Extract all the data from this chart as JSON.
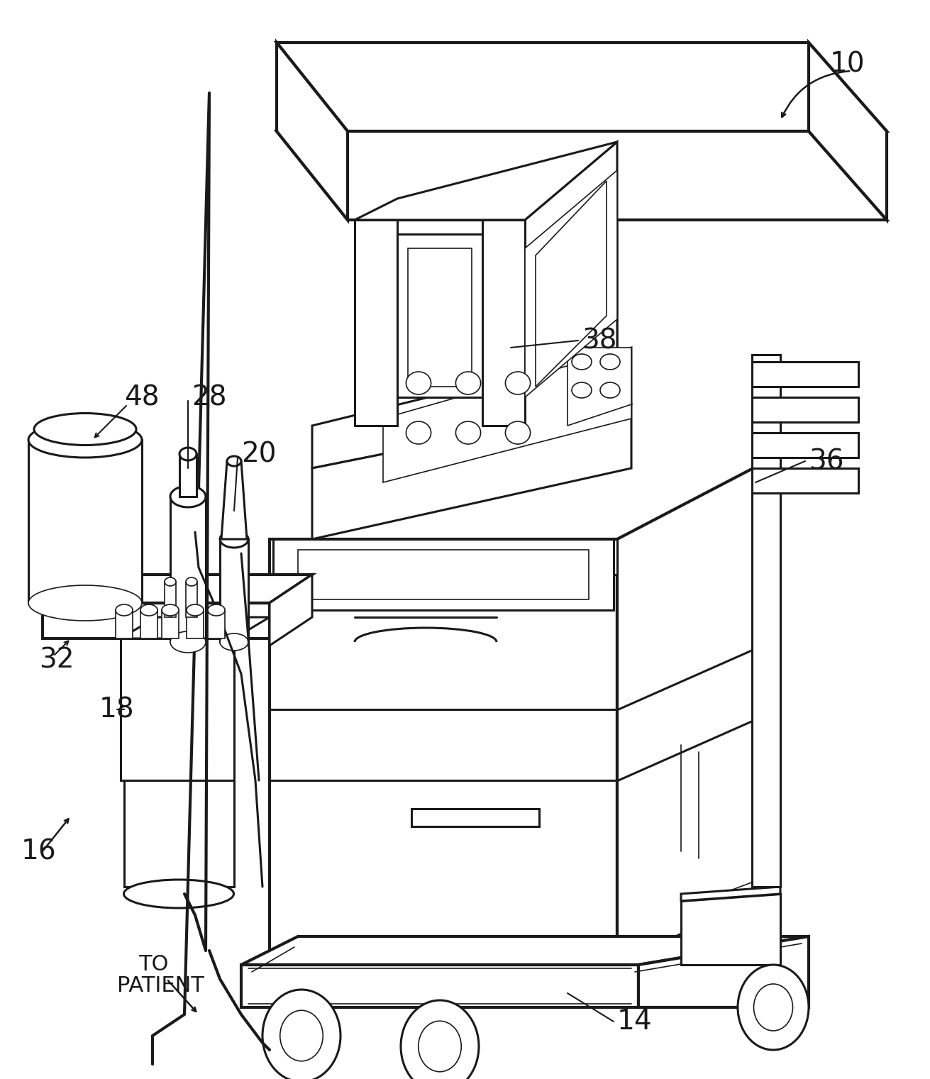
{
  "bg_color": "#ffffff",
  "lc": "#1a1a1a",
  "lw": 2.2,
  "lw_thin": 1.2,
  "lw_thick": 3.0,
  "figsize": [
    13.11,
    15.21
  ],
  "dpi": 100
}
